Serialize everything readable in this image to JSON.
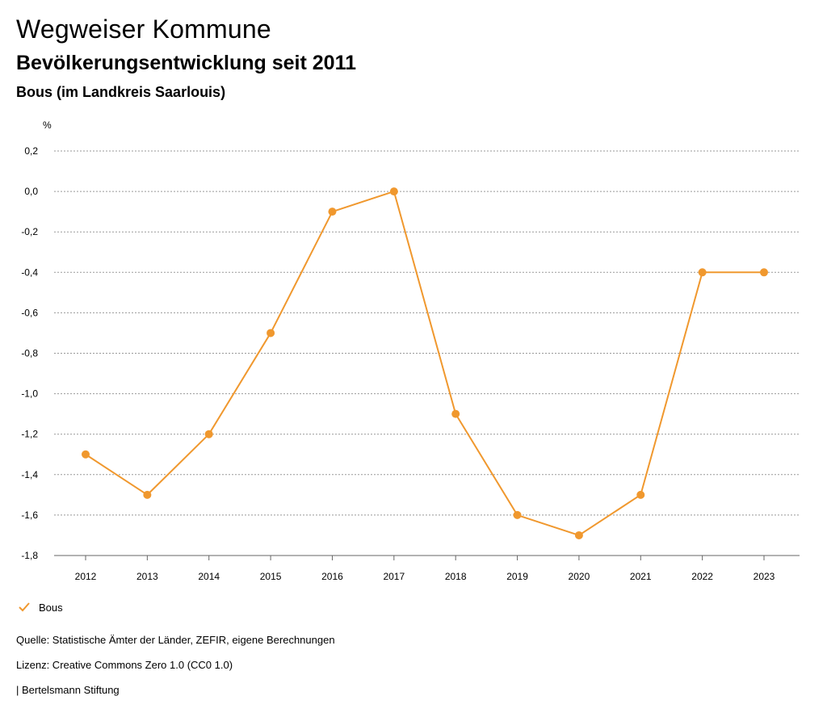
{
  "header": {
    "title": "Wegweiser Kommune",
    "subtitle": "Bevölkerungsentwicklung seit 2011",
    "region": "Bous (im Landkreis Saarlouis)"
  },
  "chart_data": {
    "type": "line",
    "unit_label": "%",
    "x": [
      "2012",
      "2013",
      "2014",
      "2015",
      "2016",
      "2017",
      "2018",
      "2019",
      "2020",
      "2021",
      "2022",
      "2023"
    ],
    "y_ticks": [
      "0,2",
      "0,0",
      "-0,2",
      "-0,4",
      "-0,6",
      "-0,8",
      "-1,0",
      "-1,2",
      "-1,4",
      "-1,6",
      "-1,8"
    ],
    "y_tick_values": [
      0.2,
      0.0,
      -0.2,
      -0.4,
      -0.6,
      -0.8,
      -1.0,
      -1.2,
      -1.4,
      -1.6,
      -1.8
    ],
    "ylim": [
      -1.8,
      0.2
    ],
    "grid": true,
    "series": [
      {
        "name": "Bous",
        "color": "#f0982e",
        "values": [
          -1.3,
          -1.5,
          -1.2,
          -0.7,
          -0.1,
          0.0,
          -1.1,
          -1.6,
          -1.7,
          -1.5,
          -0.4,
          -0.4
        ]
      }
    ],
    "legend_placement": "bottom-left"
  },
  "legend": {
    "label": "Bous"
  },
  "footer": {
    "source": "Quelle: Statistische Ämter der Länder, ZEFIR, eigene Berechnungen",
    "license": "Lizenz: Creative Commons Zero 1.0 (CC0 1.0)",
    "publisher": "| Bertelsmann Stiftung"
  }
}
